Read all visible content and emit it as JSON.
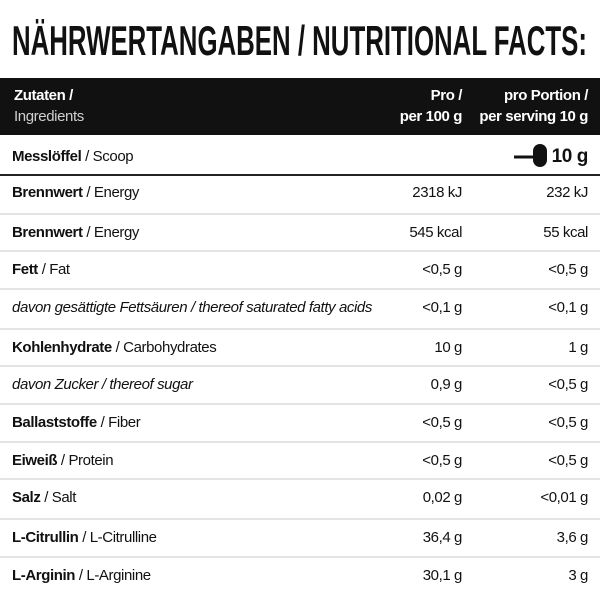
{
  "header": {
    "title": "NÄHRWERTANGABEN / NUTRITIONAL FACTS:"
  },
  "table": {
    "columns": {
      "label_de": "Zutaten /",
      "label_en": "Ingredients",
      "per100_de": "Pro /",
      "per100_en": "per 100 g",
      "serving_de": "pro Portion /",
      "serving_en": "per serving 10 g"
    },
    "scoop": {
      "de": "Messlöffel",
      "en": "/ Scoop",
      "amount": "10 g"
    },
    "rows": [
      {
        "de": "Brennwert",
        "en": "/ Energy",
        "per100": "2318 kJ",
        "serving": "232 kJ"
      },
      {
        "de": "Brennwert",
        "en": "/ Energy",
        "per100": "545 kcal",
        "serving": "55 kcal"
      },
      {
        "de": "Fett",
        "en": "/ Fat",
        "per100": "<0,5 g",
        "serving": "<0,5 g"
      },
      {
        "de": "davon gesättigte Fettsäuren",
        "en": "/ thereof saturated fatty acids",
        "per100": "<0,1 g",
        "serving": "<0,1 g"
      },
      {
        "de": "Kohlenhydrate",
        "en": "/ Carbohydrates",
        "per100": "10 g",
        "serving": "1 g"
      },
      {
        "de": "davon Zucker",
        "en": "/ thereof sugar",
        "per100": "0,9 g",
        "serving": "<0,5 g"
      },
      {
        "de": "Ballaststoffe",
        "en": "/ Fiber",
        "per100": "<0,5 g",
        "serving": "<0,5 g"
      },
      {
        "de": "Eiweiß",
        "en": "/ Protein",
        "per100": "<0,5 g",
        "serving": "<0,5 g"
      },
      {
        "de": "Salz",
        "en": "/ Salt",
        "per100": "0,02 g",
        "serving": "<0,01 g"
      },
      {
        "de": "L-Citrullin",
        "en": "/ L-Citrulline",
        "per100": "36,4 g",
        "serving": "3,6 g"
      },
      {
        "de": "L-Arginin",
        "en": "/ L-Arginine",
        "per100": "30,1 g",
        "serving": "3 g"
      }
    ]
  }
}
